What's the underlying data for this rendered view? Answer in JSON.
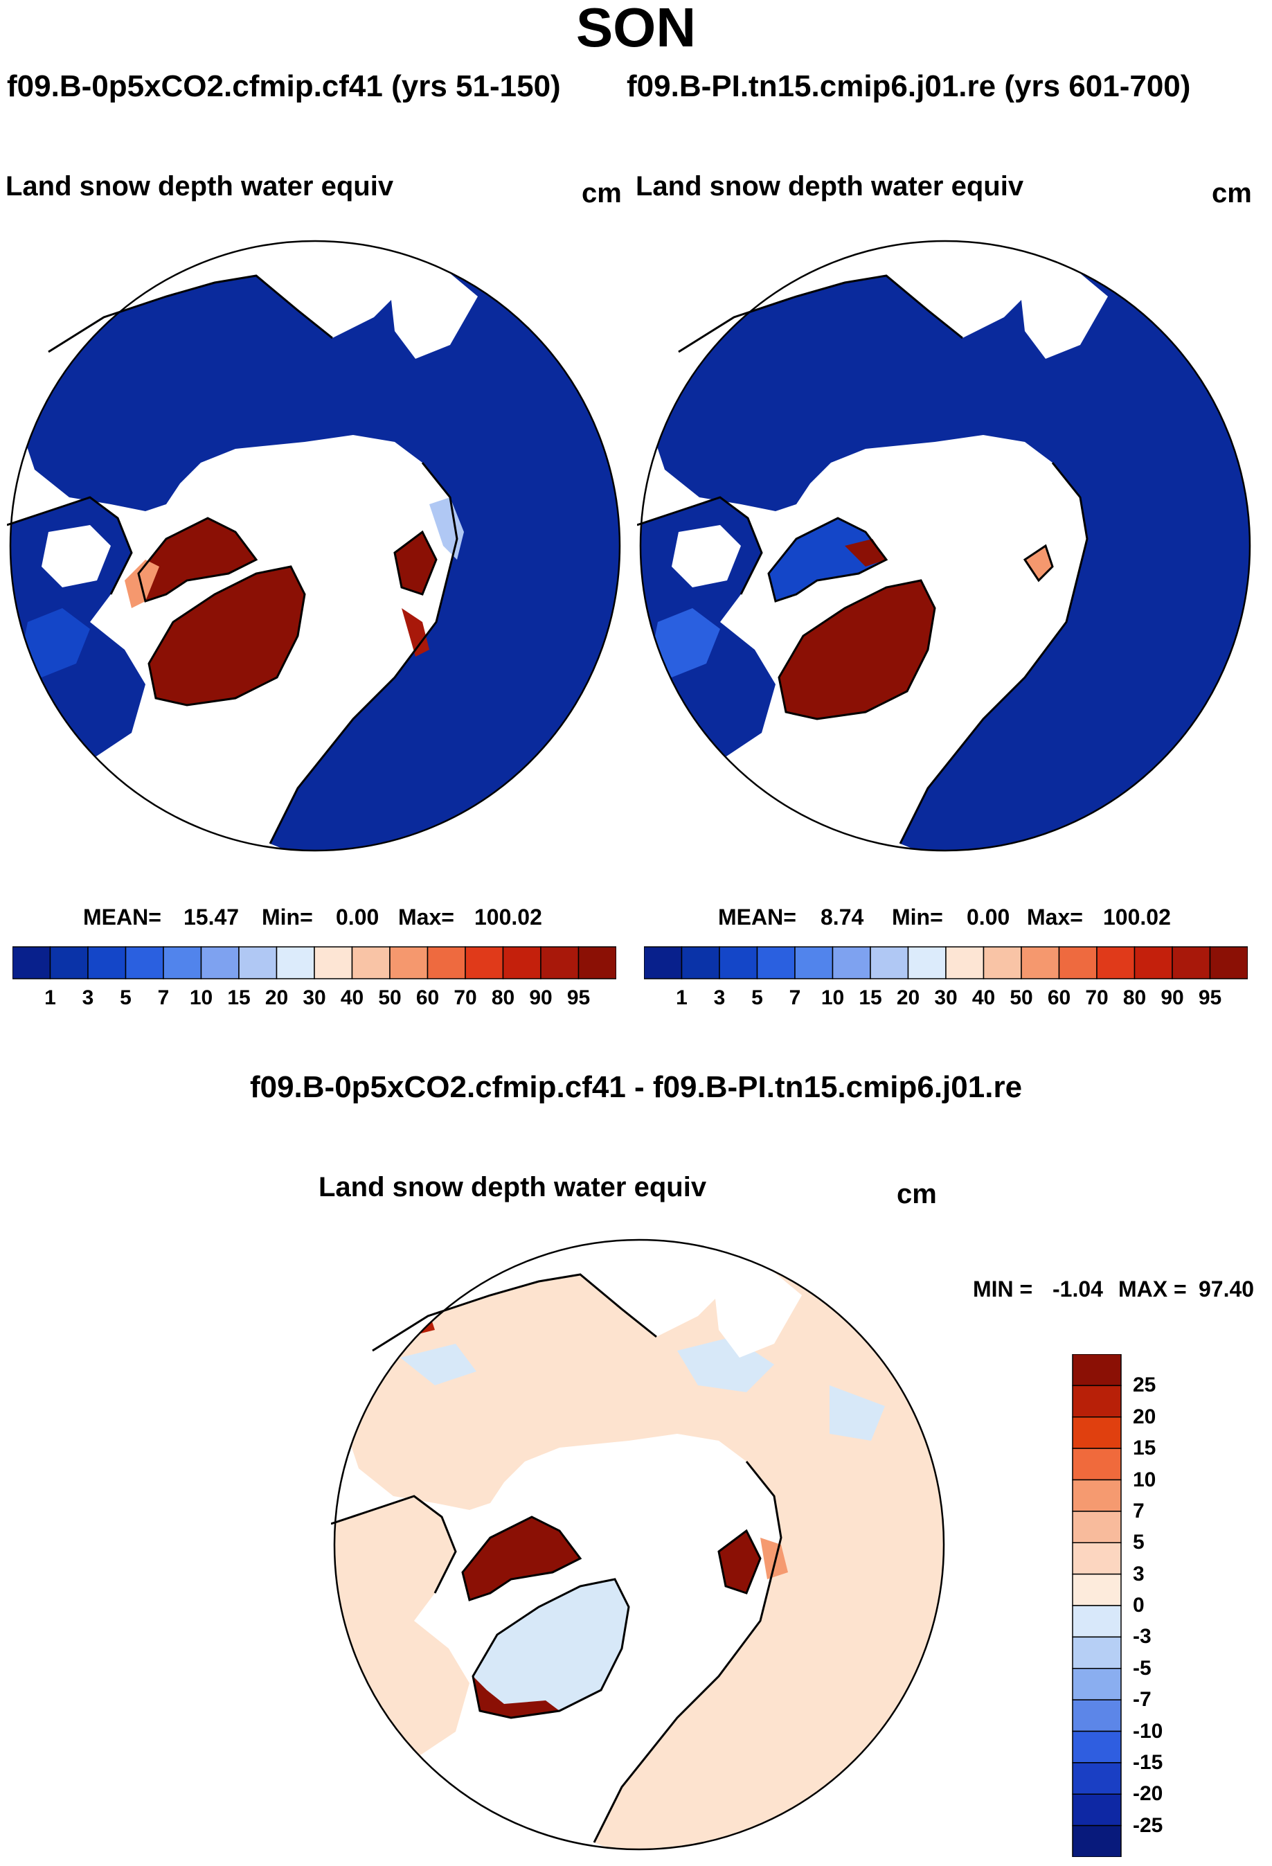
{
  "main_title": "SON",
  "run_titles": {
    "left": "f09.B-0p5xCO2.cfmip.cf41 (yrs 51-150)",
    "right": "f09.B-PI.tn15.cmip6.j01.re (yrs 601-700)"
  },
  "diff_title": "f09.B-0p5xCO2.cfmip.cf41 - f09.B-PI.tn15.cmip6.j01.re",
  "colors": {
    "ocean": "#ffffff",
    "land_outline": "#000000",
    "deep_blue": "#0a2a9c",
    "dark_red": "#8b1005",
    "light_peach": "#fde3cf",
    "light_blue": "#d7e8f8"
  },
  "chart_data": [
    {
      "type": "heatmap",
      "projection": "north polar stereographic",
      "variable": "Land snow depth water equiv",
      "units": "cm",
      "stats": {
        "mean_label": "MEAN=",
        "mean": "15.47",
        "min_label": "Min=",
        "min": "0.00",
        "max_label": "Max=",
        "max": "100.02"
      },
      "colorbar": {
        "orientation": "horizontal",
        "levels": [
          "1",
          "3",
          "5",
          "7",
          "10",
          "15",
          "20",
          "30",
          "40",
          "50",
          "60",
          "70",
          "80",
          "90",
          "95"
        ],
        "colors": [
          "#08208c",
          "#0a33a8",
          "#1446c8",
          "#2a60e0",
          "#5184ec",
          "#7ea2f0",
          "#b0c8f4",
          "#dcebfb",
          "#fde5d4",
          "#f9c4a6",
          "#f5986e",
          "#ee6a3f",
          "#e03a1a",
          "#c4200c",
          "#a8180a",
          "#8b1005"
        ]
      }
    },
    {
      "type": "heatmap",
      "projection": "north polar stereographic",
      "variable": "Land snow depth water equiv",
      "units": "cm",
      "stats": {
        "mean_label": "MEAN=",
        "mean": "8.74",
        "min_label": "Min=",
        "min": "0.00",
        "max_label": "Max=",
        "max": "100.02"
      },
      "colorbar": {
        "orientation": "horizontal",
        "levels": [
          "1",
          "3",
          "5",
          "7",
          "10",
          "15",
          "20",
          "30",
          "40",
          "50",
          "60",
          "70",
          "80",
          "90",
          "95"
        ],
        "colors": [
          "#08208c",
          "#0a33a8",
          "#1446c8",
          "#2a60e0",
          "#5184ec",
          "#7ea2f0",
          "#b0c8f4",
          "#dcebfb",
          "#fde5d4",
          "#f9c4a6",
          "#f5986e",
          "#ee6a3f",
          "#e03a1a",
          "#c4200c",
          "#a8180a",
          "#8b1005"
        ]
      }
    },
    {
      "type": "heatmap",
      "projection": "north polar stereographic",
      "variable": "Land snow depth water equiv",
      "units": "cm",
      "stats": {
        "min_label": "MIN =",
        "min": "-1.04",
        "max_label": "MAX =",
        "max": "97.40"
      },
      "colorbar": {
        "orientation": "vertical",
        "levels": [
          "25",
          "20",
          "15",
          "10",
          "7",
          "5",
          "3",
          "0",
          "-3",
          "-5",
          "-7",
          "-10",
          "-15",
          "-20",
          "-25"
        ],
        "colors": [
          "#8b1005",
          "#b82008",
          "#e0400f",
          "#f06a3c",
          "#f59a70",
          "#f8bb9c",
          "#fcd6c0",
          "#fdebdc",
          "#d8e8fa",
          "#b6cff5",
          "#8aaef0",
          "#5c86e8",
          "#2f5ee0",
          "#1a3fc4",
          "#0e28a4",
          "#081a7c"
        ]
      }
    }
  ]
}
